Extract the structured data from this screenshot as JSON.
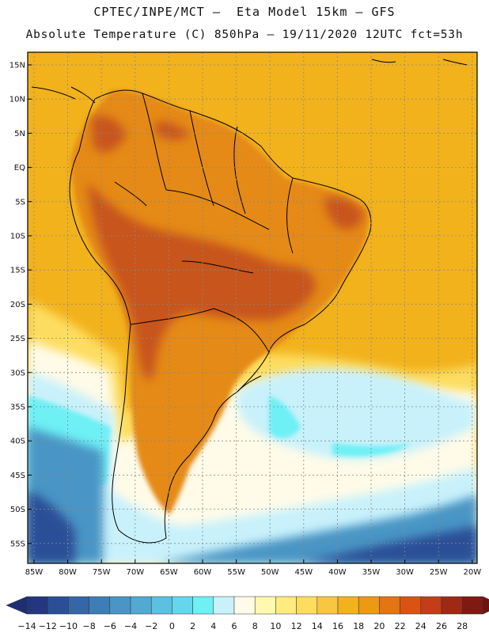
{
  "header": {
    "line1": "CPTEC/INPE/MCT –  Eta Model 15km – GFS",
    "line2": "Absolute Temperature (C) 850hPa – 19/11/2020 12UTC fct=53h"
  },
  "axes": {
    "lat_labels": [
      "15N",
      "10N",
      "5N",
      "EQ",
      "5S",
      "10S",
      "15S",
      "20S",
      "25S",
      "30S",
      "35S",
      "40S",
      "45S",
      "50S",
      "55S"
    ],
    "lon_labels": [
      "85W",
      "80W",
      "75W",
      "70W",
      "65W",
      "60W",
      "55W",
      "50W",
      "45W",
      "40W",
      "35W",
      "30W",
      "25W",
      "20W"
    ]
  },
  "colorbar": {
    "labels": [
      "-14",
      "-12",
      "-10",
      "-8",
      "-6",
      "-4",
      "-2",
      "0",
      "2",
      "4",
      "6",
      "8",
      "10",
      "12",
      "14",
      "16",
      "18",
      "20",
      "22",
      "24",
      "26",
      "28"
    ],
    "colors": [
      "#24367f",
      "#2b4f97",
      "#3566a8",
      "#3f7db7",
      "#4a95c5",
      "#52a9d2",
      "#5cc0e0",
      "#66d6ec",
      "#6ef0f5",
      "#c8f1fb",
      "#fffbe8",
      "#fff8b0",
      "#ffeb80",
      "#fddd60",
      "#f8c640",
      "#f2b21c",
      "#eb9a12",
      "#e37512",
      "#d95414",
      "#c23d18",
      "#9e2a14",
      "#7e1a12"
    ],
    "end_low": "#1f2d72",
    "end_high": "#6e1410"
  },
  "map": {
    "colors": {
      "ocean_warm": "#f2b21c",
      "land_hot": "#c8541c",
      "land_warm": "#e58a14",
      "cool": "#fddd60",
      "pale": "#fffbe8",
      "cold1": "#c8f1fb",
      "cold2": "#6ef0f5",
      "cold3": "#4a95c5",
      "cold4": "#2b4f97"
    }
  }
}
